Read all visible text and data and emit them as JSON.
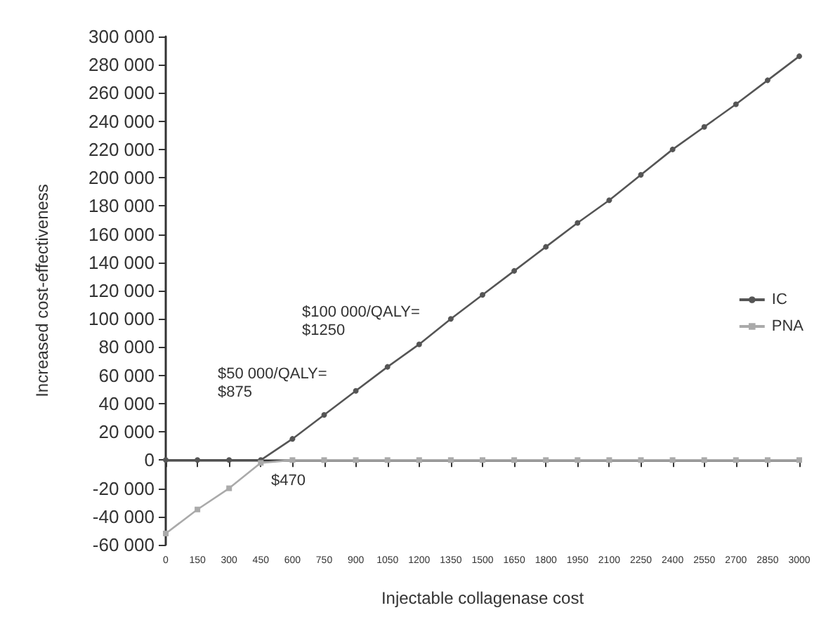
{
  "chart_data": {
    "type": "line",
    "xlabel": "Injectable collagenase cost",
    "ylabel": "Increased cost-effectiveness",
    "categories": [
      "0",
      "150",
      "300",
      "450",
      "600",
      "750",
      "900",
      "1050",
      "1200",
      "1350",
      "1500",
      "1650",
      "1800",
      "1950",
      "2100",
      "2250",
      "2400",
      "2550",
      "2700",
      "2850",
      "3000"
    ],
    "series": [
      {
        "name": "IC",
        "color": "#555555",
        "marker": "circle",
        "values": [
          0,
          0,
          0,
          0,
          15000,
          32000,
          49000,
          66000,
          82000,
          100000,
          117000,
          134000,
          151000,
          168000,
          184000,
          202000,
          220000,
          236000,
          252000,
          269000,
          286000
        ]
      },
      {
        "name": "PNA",
        "color": "#aaaaaa",
        "marker": "square",
        "values": [
          -52000,
          -35000,
          -20000,
          -2000,
          0,
          0,
          0,
          0,
          0,
          0,
          0,
          0,
          0,
          0,
          0,
          0,
          0,
          0,
          0,
          0,
          0
        ]
      }
    ],
    "ylim": [
      -60000,
      300000
    ],
    "yticks": [
      {
        "value": -60000,
        "label": "-60 000"
      },
      {
        "value": -40000,
        "label": "-40 000"
      },
      {
        "value": -20000,
        "label": "-20 000"
      },
      {
        "value": 0,
        "label": "0"
      },
      {
        "value": 20000,
        "label": "20 000"
      },
      {
        "value": 40000,
        "label": "40 000"
      },
      {
        "value": 60000,
        "label": "60 000"
      },
      {
        "value": 80000,
        "label": "80 000"
      },
      {
        "value": 100000,
        "label": "100 000"
      },
      {
        "value": 120000,
        "label": "120 000"
      },
      {
        "value": 140000,
        "label": "140 000"
      },
      {
        "value": 160000,
        "label": "160 000"
      },
      {
        "value": 180000,
        "label": "180 000"
      },
      {
        "value": 200000,
        "label": "200 000"
      },
      {
        "value": 220000,
        "label": "220 000"
      },
      {
        "value": 240000,
        "label": "240 000"
      },
      {
        "value": 260000,
        "label": "260 000"
      },
      {
        "value": 280000,
        "label": "280 000"
      },
      {
        "value": 300000,
        "label": "300 000"
      }
    ],
    "annotations": [
      "$100 000/QALY=\n$1250",
      "$50 000/QALY=\n$875",
      "$470"
    ],
    "legend": "right"
  }
}
